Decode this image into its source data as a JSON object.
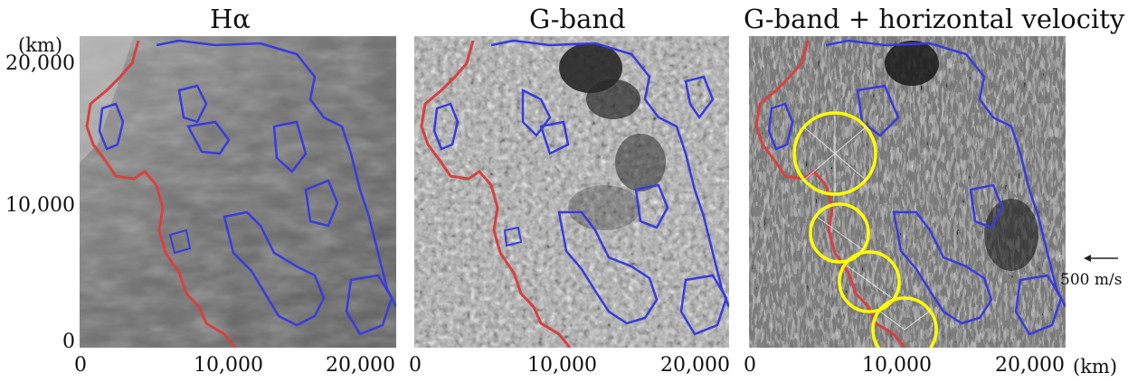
{
  "panels": [
    {
      "title": "Hα"
    },
    {
      "title": "G-band"
    },
    {
      "title": "G-band + horizontal velocity"
    }
  ],
  "axes": {
    "y_unit": "(km)",
    "x_unit": "(km)",
    "y_ticks": [
      "20,000",
      "10,000",
      "0"
    ],
    "x_ticks": [
      "0",
      "10,000",
      "20,000"
    ]
  },
  "velocity_legend": {
    "label": "500 m/s",
    "arrow": "left-arrow"
  },
  "colors": {
    "contour_red": "#d94040",
    "contour_blue": "#3a3ae0",
    "circle_yellow": "#ffff00"
  }
}
